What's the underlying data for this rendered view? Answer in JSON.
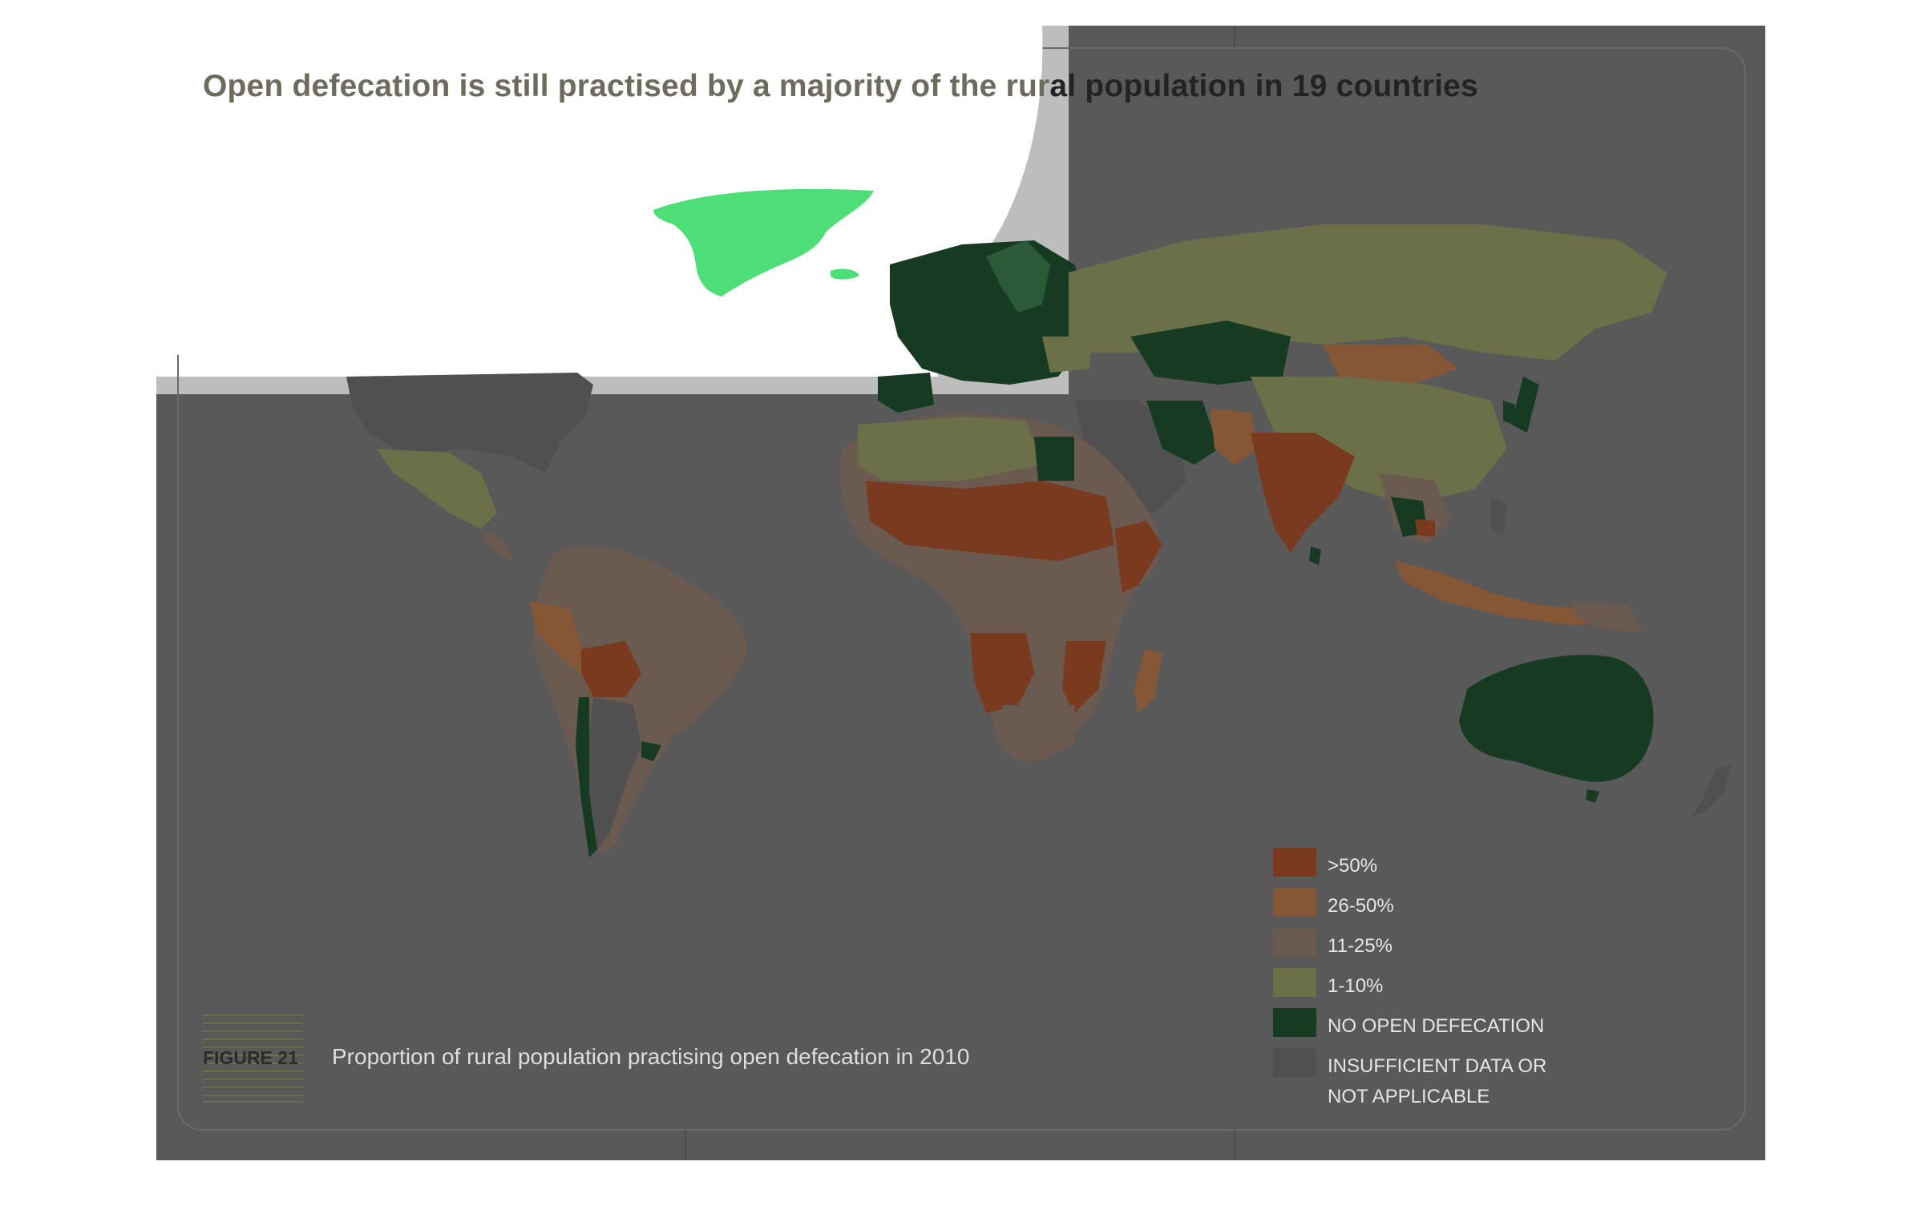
{
  "title": "Open defecation is still practised by a majority of the rural population in 19 countries",
  "figure": {
    "label": "FIGURE 21",
    "caption": "Proportion of rural population practising open defecation in 2010"
  },
  "legend": {
    "items": [
      {
        "key": "gt50",
        "label": ">50%",
        "color": "#7a3a1f"
      },
      {
        "key": "26-50",
        "label": "26-50%",
        "color": "#865737"
      },
      {
        "key": "11-25",
        "label": "11-25%",
        "color": "#6b5a4f"
      },
      {
        "key": "1-10",
        "label": "1-10%",
        "color": "#6b7049"
      },
      {
        "key": "none",
        "label": "NO OPEN DEFECATION",
        "color": "#173b22"
      },
      {
        "key": "na",
        "label": "INSUFFICIENT DATA OR",
        "label2": "NOT APPLICABLE",
        "color": "#505050"
      }
    ]
  },
  "colors": {
    "overlay": "#595959",
    "ocean": "#5a5a5a",
    "greenland": "#4ede77"
  }
}
